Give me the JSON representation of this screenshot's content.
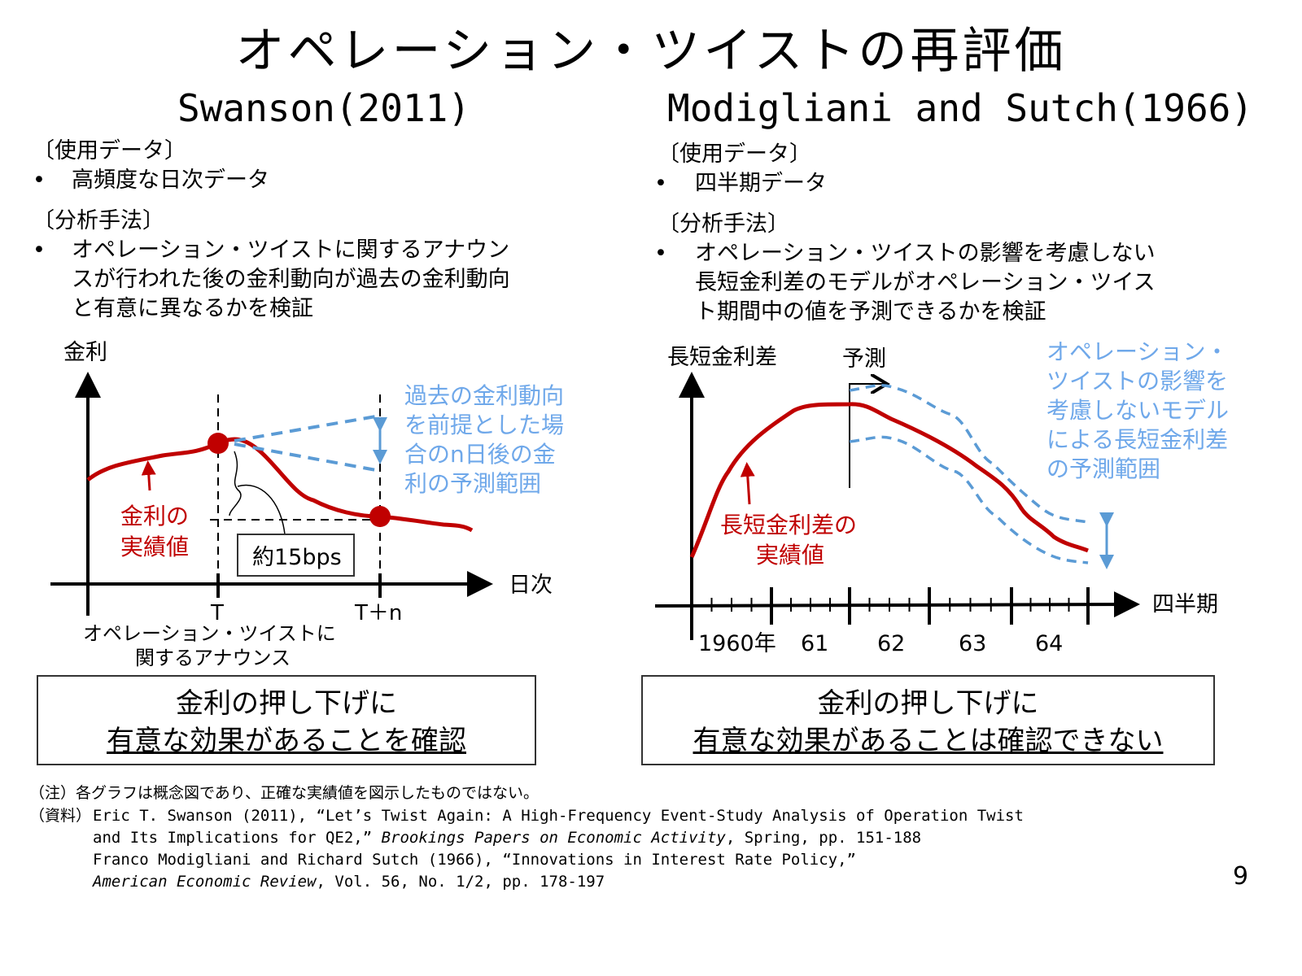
{
  "title": "オペレーション・ツイストの再評価",
  "left": {
    "heading": "Swanson(2011)",
    "data_label": "〔使用データ〕",
    "data_items": [
      "高頻度な日次データ"
    ],
    "method_label": "〔分析手法〕",
    "method_lines": [
      "オペレーション・ツイストに関するアナウン",
      "スが行われた後の金利動向が過去の金利動向",
      "と有意に異なるかを検証"
    ],
    "diagram": {
      "y_label": "金利",
      "x_label": "日次",
      "tick_t": "T",
      "tick_tn": "T＋n",
      "announce_lines": [
        "オペレーション・ツイストに",
        "関するアナウンス"
      ],
      "actual_lines": [
        "金利の",
        "実績値"
      ],
      "forecast_lines": [
        "過去の金利動向",
        "を前提とした場",
        "合のn日後の金",
        "利の予測範囲"
      ],
      "effect_box": "約15bps"
    },
    "conclusion_lines": [
      "金利の押し下げに",
      "有意な効果があることを確認"
    ]
  },
  "right": {
    "heading": "Modigliani and Sutch(1966)",
    "data_label": "〔使用データ〕",
    "data_items": [
      "四半期データ"
    ],
    "method_label": "〔分析手法〕",
    "method_lines": [
      "オペレーション・ツイストの影響を考慮しない",
      "長短金利差のモデルがオペレーション・ツイス",
      "ト期間中の値を予測できるかを検証"
    ],
    "diagram": {
      "y_label": "長短金利差",
      "forecast_marker": "予測",
      "x_label": "四半期",
      "x_ticks": [
        "1960年",
        "61",
        "62",
        "63",
        "64"
      ],
      "actual_lines": [
        "長短金利差の",
        "実績値"
      ],
      "forecast_lines": [
        "オペレーション・",
        "ツイストの影響を",
        "考慮しないモデル",
        "による長短金利差",
        "の予測範囲"
      ]
    },
    "conclusion_lines": [
      "金利の押し下げに",
      "有意な効果があることは確認できない"
    ]
  },
  "bullet": "•",
  "footnotes": {
    "note": "（注）各グラフは概念図であり、正確な実績値を図示したものではない。",
    "source_label": "（資料）",
    "src1a": "Eric T. Swanson (2011), “Let’s Twist Again: A High-Frequency Event-Study Analysis of Operation Twist",
    "src1b": "and Its Implications for QE2,” ",
    "src1b_journal": "Brookings Papers on Economic Activity",
    "src1b_rest": ", Spring, pp. 151-188",
    "src2a": "Franco Modigliani and Richard Sutch (1966), “Innovations in Interest Rate Policy,”",
    "src2b_journal": "American Economic Review",
    "src2b_rest": ", Vol. 56, No. 1/2, pp. 178-197"
  },
  "page_number": "9",
  "colors": {
    "actual": "#c00000",
    "forecast": "#5b9bd5",
    "forecast_text": "#6fa8ea"
  }
}
